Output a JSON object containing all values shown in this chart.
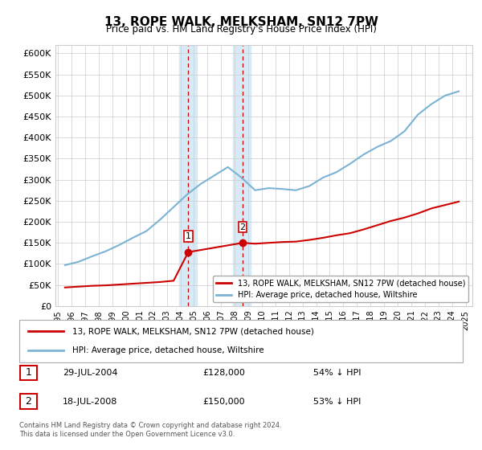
{
  "title": "13, ROPE WALK, MELKSHAM, SN12 7PW",
  "subtitle": "Price paid vs. HM Land Registry's House Price Index (HPI)",
  "ylim": [
    0,
    620000
  ],
  "yticks": [
    0,
    50000,
    100000,
    150000,
    200000,
    250000,
    300000,
    350000,
    400000,
    450000,
    500000,
    550000,
    600000
  ],
  "ytick_labels": [
    "£0",
    "£50K",
    "£100K",
    "£150K",
    "£200K",
    "£250K",
    "£300K",
    "£350K",
    "£400K",
    "£450K",
    "£500K",
    "£550K",
    "£600K"
  ],
  "hpi_color": "#7ab3d4",
  "price_color": "#cc0000",
  "shade_color": "#d8eaf5",
  "background_color": "#ffffff",
  "grid_color": "#cccccc",
  "legend_label_red": "13, ROPE WALK, MELKSHAM, SN12 7PW (detached house)",
  "legend_label_blue": "HPI: Average price, detached house, Wiltshire",
  "purchase1_date": "29-JUL-2004",
  "purchase1_price": 128000,
  "purchase1_label": "1",
  "purchase1_pct": "54% ↓ HPI",
  "purchase2_date": "18-JUL-2008",
  "purchase2_price": 150000,
  "purchase2_label": "2",
  "purchase2_pct": "53% ↓ HPI",
  "footer": "Contains HM Land Registry data © Crown copyright and database right 2024.\nThis data is licensed under the Open Government Licence v3.0.",
  "hpi_x": [
    1995.5,
    1996.5,
    1997.5,
    1998.5,
    1999.5,
    2000.5,
    2001.5,
    2002.5,
    2003.5,
    2004.5,
    2005.5,
    2006.5,
    2007.5,
    2008.5,
    2009.5,
    2010.5,
    2011.5,
    2012.5,
    2013.5,
    2014.5,
    2015.5,
    2016.5,
    2017.5,
    2018.5,
    2019.5,
    2020.5,
    2021.5,
    2022.5,
    2023.5,
    2024.5
  ],
  "hpi_y": [
    97000,
    105000,
    118000,
    130000,
    145000,
    162000,
    178000,
    205000,
    235000,
    265000,
    290000,
    310000,
    330000,
    305000,
    275000,
    280000,
    278000,
    275000,
    285000,
    305000,
    318000,
    338000,
    360000,
    378000,
    392000,
    415000,
    455000,
    480000,
    500000,
    510000
  ],
  "price_x": [
    1995.5,
    1996.5,
    1997.5,
    1998.5,
    1999.5,
    2000.5,
    2001.5,
    2002.5,
    2003.5,
    2004.58,
    2008.58,
    2009.5,
    2010.5,
    2011.5,
    2012.5,
    2013.5,
    2014.5,
    2015.5,
    2016.5,
    2017.5,
    2018.5,
    2019.5,
    2020.5,
    2021.5,
    2022.5,
    2023.5,
    2024.5
  ],
  "price_y": [
    44000,
    46000,
    48000,
    49000,
    51000,
    53000,
    55000,
    57000,
    60000,
    128000,
    150000,
    148000,
    150000,
    152000,
    153000,
    157000,
    162000,
    168000,
    173000,
    182000,
    192000,
    202000,
    210000,
    220000,
    232000,
    240000,
    248000
  ],
  "shade_start1": 2003.9,
  "shade_end1": 2005.2,
  "shade_start2": 2007.9,
  "shade_end2": 2009.2,
  "purchase1_x": 2004.58,
  "purchase2_x": 2008.58,
  "xlim_left": 1994.8,
  "xlim_right": 2025.5,
  "xticks": [
    1995,
    1996,
    1997,
    1998,
    1999,
    2000,
    2001,
    2002,
    2003,
    2004,
    2005,
    2006,
    2007,
    2008,
    2009,
    2010,
    2011,
    2012,
    2013,
    2014,
    2015,
    2016,
    2017,
    2018,
    2019,
    2020,
    2021,
    2022,
    2023,
    2024,
    2025
  ]
}
